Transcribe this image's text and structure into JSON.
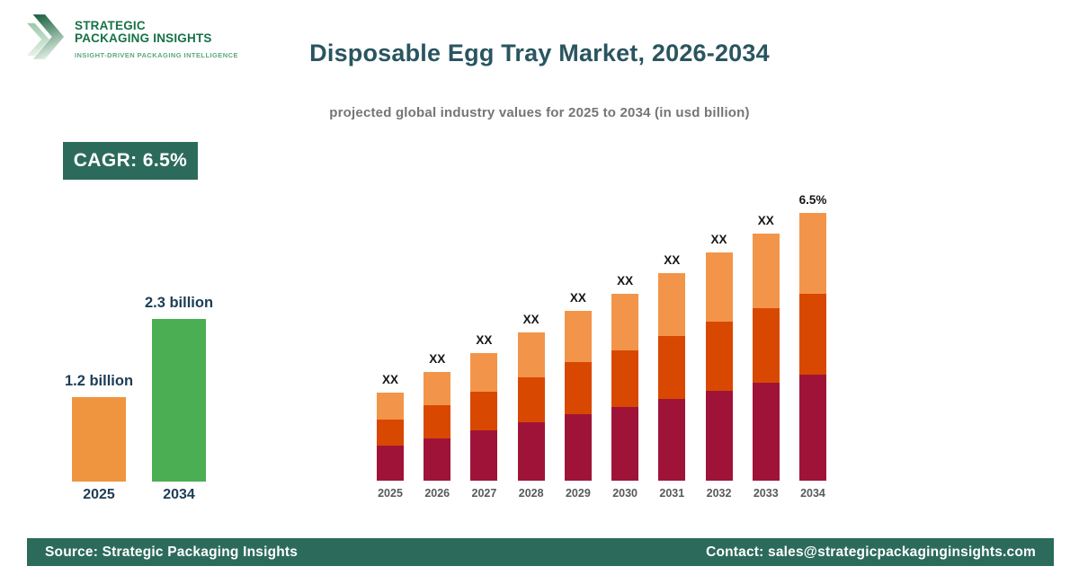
{
  "logo": {
    "name_line1": "STRATEGIC",
    "name_line2": "PACKAGING INSIGHTS",
    "tagline": "INSIGHT-DRIVEN PACKAGING INTELLIGENCE"
  },
  "header": {
    "title": "Disposable Egg Tray Market, 2026-2034",
    "subtitle": "projected global industry values for 2025 to 2034 (in usd billion)"
  },
  "cagr_badge": {
    "label": "CAGR: 6.5%"
  },
  "footer": {
    "source": "Source: Strategic Packaging Insights",
    "contact": "Contact: sales@strategicpackaginginsights.com"
  },
  "colors": {
    "title_teal": "#2A5560",
    "badge_bg": "#2C6B5B",
    "footer_bg": "#2C6B5B",
    "mini_label": "#1C3D56",
    "stack_bottom": "#A01338",
    "stack_middle": "#D94801",
    "stack_top": "#F2954A"
  },
  "chart_data": [
    {
      "name": "market-growth-summary",
      "type": "bar",
      "categories": [
        "2025",
        "2034"
      ],
      "values": [
        1.2,
        2.3
      ],
      "value_labels": [
        "1.2 billion",
        "2.3 billion"
      ],
      "bar_colors": [
        "#F0953F",
        "#4CAE52"
      ],
      "unit": "usd billion",
      "ylim": [
        0,
        2.3
      ],
      "grid": false,
      "axes_hidden": true
    },
    {
      "name": "projected-values-by-year-stacked",
      "type": "bar",
      "stacked": true,
      "categories": [
        "2025",
        "2026",
        "2027",
        "2028",
        "2029",
        "2030",
        "2031",
        "2032",
        "2033",
        "2034"
      ],
      "series": [
        {
          "name": "bottom-segment",
          "color": "#A01338",
          "values": [
            39,
            47,
            56,
            65,
            74,
            82,
            91,
            100,
            109,
            118
          ]
        },
        {
          "name": "middle-segment",
          "color": "#D94801",
          "values": [
            29,
            37,
            43,
            50,
            58,
            63,
            70,
            77,
            83,
            90
          ]
        },
        {
          "name": "top-segment",
          "color": "#F2954A",
          "values": [
            30,
            37,
            43,
            50,
            57,
            63,
            70,
            77,
            83,
            90
          ]
        }
      ],
      "bar_labels": [
        "XX",
        "XX",
        "XX",
        "XX",
        "XX",
        "XX",
        "XX",
        "XX",
        "XX",
        "6.5%"
      ],
      "values_note": "segment values are unlabeled in source (XX placeholders); series values are relative height estimates",
      "ylim": [
        0,
        320
      ],
      "grid": false,
      "axes_hidden": true
    }
  ]
}
